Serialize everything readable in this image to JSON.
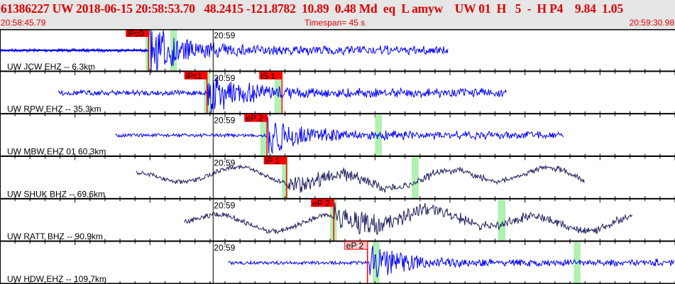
{
  "header": {
    "title": "61386227 UW 2018-06-15 20:58:53.70   48.2415 -121.8782  10.89  0.48 Md  eq  L amyw    UW 01  H   5  -  H P4    9.84  1.05",
    "start_time": "20:58:45.79",
    "timespan": "Timespan=  45 s",
    "end_time": "20:59:30.98"
  },
  "timespan_s": 45,
  "minute_label": "20:59",
  "minute_offset_s": 14.21,
  "colors": {
    "header_text": "#e00000",
    "trace_short": "#0000ff",
    "trace_broadband": "#202060",
    "pick": "#ff0000",
    "pick_pending": "#ffc8c8",
    "window": "#b0f0b0"
  },
  "traces": [
    {
      "label": "UW JCW EHZ -- 6.3km",
      "type": "short",
      "start_s": 0,
      "end_s": 29.9,
      "arrival_s": 9.9,
      "amp": 0.55,
      "noise": 0.04,
      "picks": [
        {
          "label": "iPc0",
          "time_s": 9.9,
          "style": "final"
        }
      ],
      "windows": [
        [
          9.7,
          10.1
        ],
        [
          11.35,
          11.8
        ]
      ],
      "coda": true
    },
    {
      "label": "UW RPW EHZ -- 35.3km",
      "type": "short",
      "start_s": 3.9,
      "end_s": 33.8,
      "arrival_s": 13.8,
      "amp": 0.45,
      "noise": 0.06,
      "picks": [
        {
          "label": "iPc1",
          "time_s": 13.8,
          "style": "final"
        },
        {
          "label": "iS 1",
          "time_s": 18.8,
          "style": "final"
        }
      ],
      "windows": [
        [
          13.6,
          14.0
        ],
        [
          18.3,
          18.75
        ]
      ]
    },
    {
      "label": "UW MBW EHZ 01 60.3km",
      "type": "short",
      "start_s": 7.7,
      "end_s": 37.6,
      "arrival_s": 17.8,
      "amp": 0.45,
      "noise": 0.04,
      "picks": [
        {
          "label": "eP 2",
          "time_s": 17.8,
          "style": "final"
        }
      ],
      "windows": [
        [
          17.35,
          17.8
        ],
        [
          25,
          25.45
        ]
      ]
    },
    {
      "label": "UW SHUK BHZ -- 69.6km",
      "type": "broad",
      "start_s": 9.1,
      "end_s": 39,
      "arrival_s": 19.1,
      "amp": 0.18,
      "noise": 0.05,
      "picks": [
        {
          "label": "iP 1",
          "time_s": 19.1,
          "style": "final"
        }
      ],
      "windows": [
        [
          18.8,
          19.2
        ],
        [
          27.45,
          27.9
        ]
      ]
    },
    {
      "label": "UW RATT BHZ -- 90.9km",
      "type": "broad",
      "start_s": 12.3,
      "end_s": 42.2,
      "arrival_s": 22.25,
      "amp": 0.25,
      "noise": 0.06,
      "picks": [
        {
          "label": "eP 2",
          "time_s": 22.25,
          "style": "final"
        }
      ],
      "windows": [
        [
          22,
          22.45
        ],
        [
          33.2,
          33.7
        ]
      ]
    },
    {
      "label": "UW HDW EHZ -- 109.7km",
      "type": "short",
      "start_s": 15.2,
      "end_s": 45,
      "arrival_s": 24.6,
      "amp": 0.4,
      "noise": 0.04,
      "picks": [
        {
          "label": "eP 2",
          "time_s": 24.5,
          "style": "pending"
        }
      ],
      "windows": [
        [
          24.85,
          25.3
        ],
        [
          38.25,
          38.7
        ]
      ]
    }
  ]
}
